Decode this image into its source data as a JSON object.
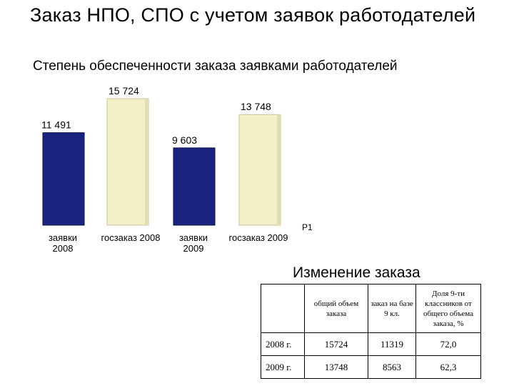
{
  "page": {
    "title": "Заказ НПО, СПО с учетом заявок работодателей",
    "subtitle": "Степень обеспеченности заказа заявками работодателей"
  },
  "chart_data": {
    "type": "bar",
    "categories": [
      "заявки 2008",
      "госзаказ 2008",
      "заявки 2009",
      "госзаказ 2009"
    ],
    "values": [
      11491,
      15724,
      9603,
      13748
    ],
    "value_labels": [
      "11 491",
      "15 724",
      "9 603",
      "13 748"
    ],
    "bar_colors": [
      "#1a237e",
      "#f3f0c8",
      "#1a237e",
      "#f3f0c8"
    ],
    "legend_text": "Р1",
    "legend_placement": "right",
    "grid": false,
    "ylim": [
      0,
      16500
    ],
    "title": "Степень обеспеченности заказа заявками работодателей",
    "xlabel": "",
    "ylabel": ""
  },
  "table": {
    "title": "Изменение заказа",
    "headers": [
      "",
      "общий объем заказа",
      "заказ на базе 9 кл.",
      "Доля 9-ти классников от общего объема заказа, %"
    ],
    "rows": [
      [
        "2008 г.",
        "15724",
        "11319",
        "72,0"
      ],
      [
        "2009 г.",
        "13748",
        "8563",
        "62,3"
      ]
    ]
  }
}
